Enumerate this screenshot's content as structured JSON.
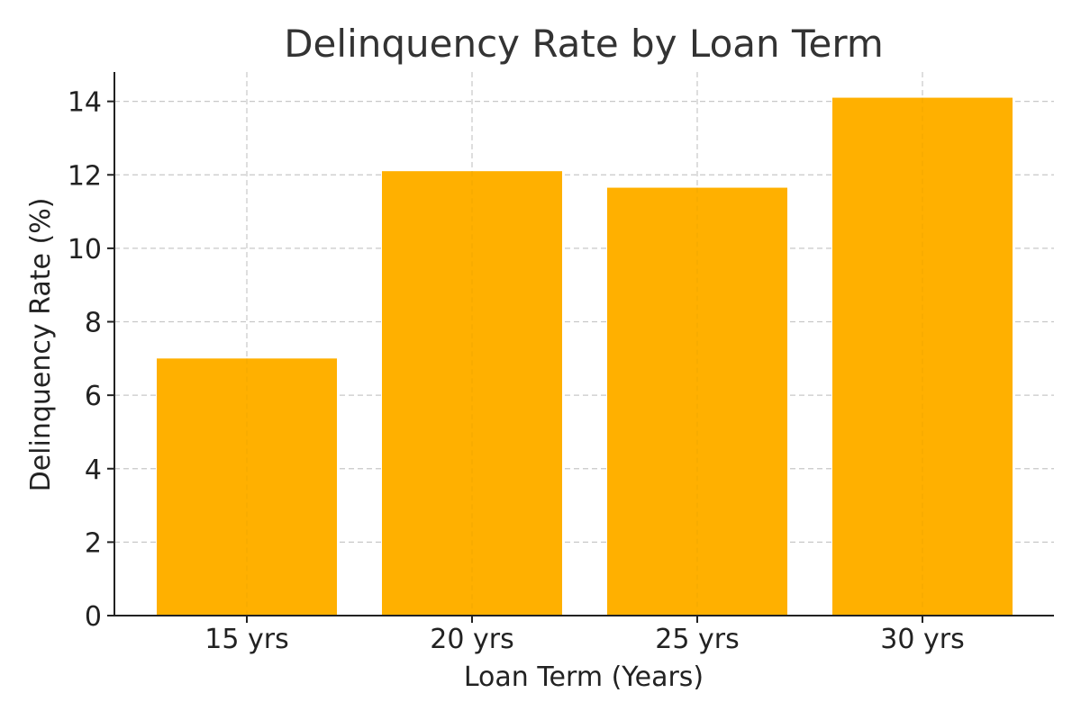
{
  "chart_data": {
    "type": "bar",
    "title": "Delinquency Rate by Loan Term",
    "xlabel": "Loan Term (Years)",
    "ylabel": "Delinquency Rate (%)",
    "categories": [
      "15 yrs",
      "20 yrs",
      "25 yrs",
      "30 yrs"
    ],
    "values": [
      7.0,
      12.1,
      11.65,
      14.1
    ],
    "ylim": [
      0,
      14.8
    ],
    "yticks": [
      0,
      2,
      4,
      6,
      8,
      10,
      12,
      14
    ],
    "grid": true,
    "colors": {
      "bar": "#FFB000",
      "grid": "#c8c8c8",
      "axis": "#222222",
      "title": "#333333"
    }
  }
}
